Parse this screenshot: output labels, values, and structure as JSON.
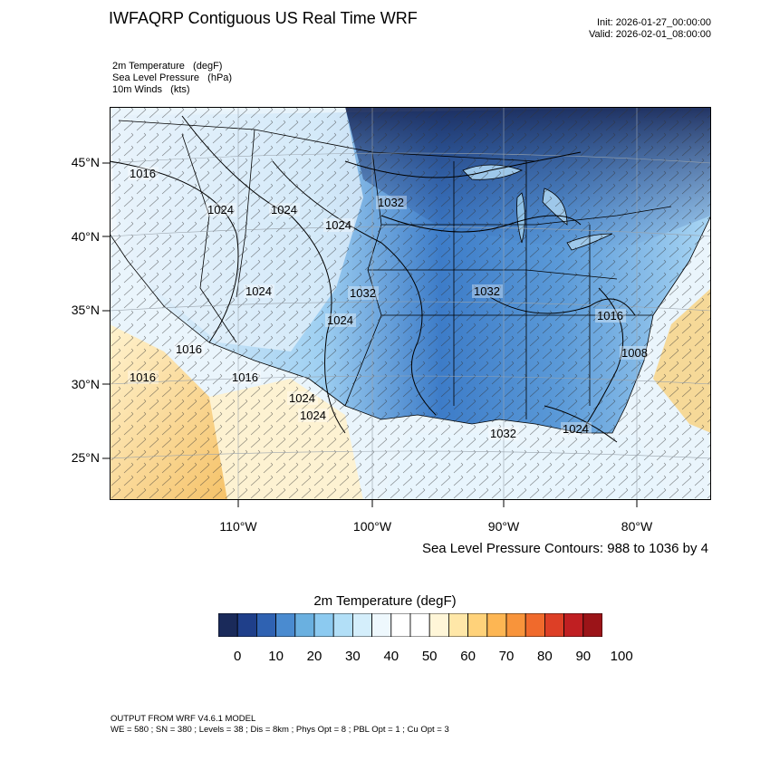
{
  "title": "IWFAQRP Contiguous US Real Time WRF",
  "init": "Init: 2026-01-27_00:00:00",
  "valid": "Valid: 2026-02-01_08:00:00",
  "variables": [
    "2m Temperature   (degF)",
    "Sea Level Pressure   (hPa)",
    "10m Winds   (kts)"
  ],
  "lat_labels": [
    "45°N",
    "40°N",
    "35°N",
    "30°N",
    "25°N"
  ],
  "lon_labels": [
    "110°W",
    "100°W",
    "90°W",
    "80°W"
  ],
  "contour_note": "Sea Level Pressure Contours: 988 to 1036 by 4",
  "pressure_labels": [
    "1016",
    "1024",
    "1024",
    "1024",
    "1032",
    "1032",
    "1024",
    "1032",
    "1024",
    "1016",
    "1016",
    "1016",
    "1016",
    "1008",
    "1024",
    "1032",
    "1024",
    "1024"
  ],
  "colorbar": {
    "title": "2m Temperature  (degF)",
    "colors": [
      "#1a2a5a",
      "#1f3f8a",
      "#2f62b2",
      "#4a8bd0",
      "#6ab0e0",
      "#8ccaf0",
      "#b2dff7",
      "#d4eefb",
      "#eef8fd",
      "#ffffff",
      "#ffffff",
      "#fff6d8",
      "#ffe7a8",
      "#ffd27a",
      "#fdb653",
      "#f8943b",
      "#f06a2c",
      "#dd3f26",
      "#c01f22",
      "#9b1418"
    ],
    "labels": [
      "0",
      "10",
      "20",
      "30",
      "40",
      "50",
      "60",
      "70",
      "80",
      "90",
      "100"
    ]
  },
  "footer": [
    "OUTPUT FROM WRF V4.6.1 MODEL",
    "WE = 580 ; SN = 380 ; Levels = 38 ; Dis = 8km ; Phys Opt = 8 ; PBL Opt = 1 ; Cu Opt = 3"
  ]
}
